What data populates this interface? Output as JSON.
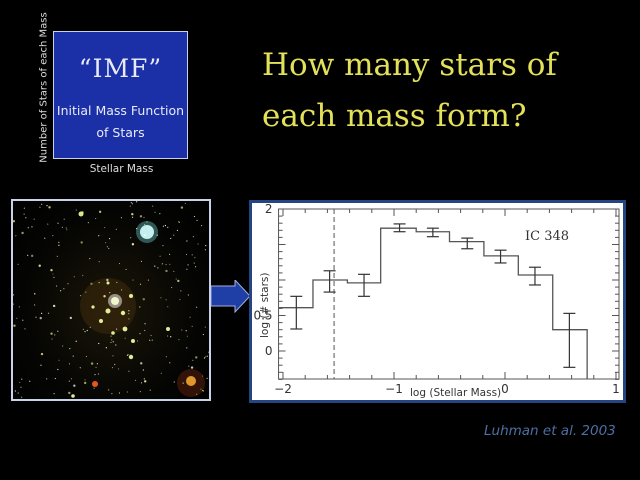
{
  "imf_box": {
    "title": "“IMF”",
    "subtitle_line1": "Initial Mass Function",
    "subtitle_line2": "of Stars",
    "y_axis_label": "Number of Stars of each Mass",
    "x_axis_label": "Stellar Mass",
    "background_color": "#1b2fa6"
  },
  "headline": {
    "line1": "How many stars of",
    "line2": "each mass form?",
    "color": "#e3e05a"
  },
  "star_image": {
    "description": "IC 348 star cluster infrared image"
  },
  "arrow": {
    "icon": "right-arrow-icon",
    "color": "#1f3fa6"
  },
  "citation": "Luhman et al. 2003",
  "chart_data": {
    "type": "bar",
    "style": "step histogram with error bars",
    "title": "",
    "annotation": "IC 348",
    "xlabel": "log (Stellar Mass)",
    "ylabel": "log (# stars)",
    "xlim": [
      -2.04,
      1.0
    ],
    "ylim": [
      -0.4,
      2.0
    ],
    "x_ticks": [
      -2,
      -1,
      0,
      1
    ],
    "x_tick_labels": [
      "−2",
      "−1",
      "0",
      "1"
    ],
    "y_tick_labels_shown": [
      {
        "value": 2,
        "label": "2"
      },
      {
        "value": 0.5,
        "label": "0.5"
      },
      {
        "value": 0,
        "label": "0"
      }
    ],
    "bin_edges": [
      -2.04,
      -1.73,
      -1.42,
      -1.12,
      -0.8,
      -0.5,
      -0.19,
      0.12,
      0.43,
      0.74
    ],
    "categories": [
      -1.88,
      -1.58,
      -1.27,
      -0.95,
      -0.65,
      -0.34,
      -0.04,
      0.27,
      0.58
    ],
    "values": [
      0.61,
      1.0,
      0.96,
      1.73,
      1.68,
      1.54,
      1.34,
      1.07,
      0.3
    ],
    "error_low": [
      0.31,
      0.83,
      0.77,
      1.68,
      1.61,
      1.44,
      1.24,
      0.93,
      -0.23
    ],
    "error_high": [
      0.77,
      1.13,
      1.08,
      1.79,
      1.73,
      1.59,
      1.42,
      1.18,
      0.53
    ],
    "vertical_dashed_line_x": -1.54,
    "grid": false,
    "legend": null
  }
}
